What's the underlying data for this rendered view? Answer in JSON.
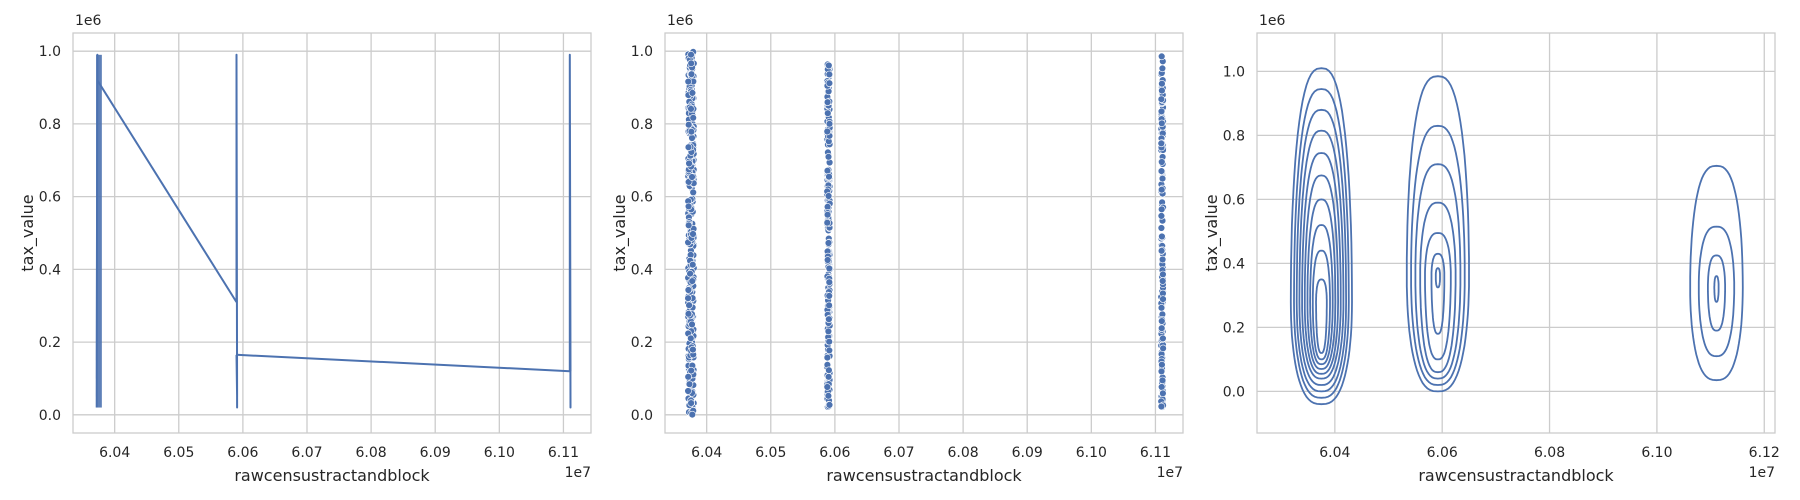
{
  "chart_data": [
    {
      "type": "line",
      "xlabel": "rawcensustractandblock",
      "ylabel": "tax_value",
      "x_offset_label": "1e7",
      "y_offset_label": "1e6",
      "xlim": [
        6.0335,
        6.1143
      ],
      "ylim": [
        -0.05,
        1.05
      ],
      "xticks": [
        6.04,
        6.05,
        6.06,
        6.07,
        6.08,
        6.09,
        6.1,
        6.11
      ],
      "yticks": [
        0.0,
        0.2,
        0.4,
        0.6,
        0.8,
        1.0
      ],
      "xtick_labels": [
        "6.04",
        "6.05",
        "6.06",
        "6.07",
        "6.08",
        "6.09",
        "6.10",
        "6.11"
      ],
      "ytick_labels": [
        "0.0",
        "0.2",
        "0.4",
        "0.6",
        "0.8",
        "1.0"
      ],
      "grid": true,
      "color": "#4c72b0",
      "series": [
        {
          "x": [
            6.0372,
            6.0373,
            6.0372,
            6.0373,
            6.0372,
            6.0373,
            6.0372,
            6.0373,
            6.0373
          ],
          "y": [
            0.02,
            0.99,
            0.05,
            0.97,
            0.1,
            0.95,
            0.15,
            0.99,
            0.92
          ]
        },
        {
          "x": [
            6.0373,
            6.059
          ],
          "y": [
            0.92,
            0.31
          ]
        },
        {
          "x": [
            6.059,
            6.059,
            6.0591,
            6.059,
            6.0591,
            6.059
          ],
          "y": [
            0.31,
            0.99,
            0.02,
            0.98,
            0.05,
            0.165
          ]
        },
        {
          "x": [
            6.059,
            6.111
          ],
          "y": [
            0.165,
            0.12
          ]
        },
        {
          "x": [
            6.111,
            6.111,
            6.1111,
            6.111,
            6.1111
          ],
          "y": [
            0.12,
            0.99,
            0.02,
            0.98,
            0.12
          ]
        }
      ]
    },
    {
      "type": "scatter",
      "xlabel": "rawcensustractandblock",
      "ylabel": "tax_value",
      "x_offset_label": "1e7",
      "y_offset_label": "1e6",
      "xlim": [
        6.0335,
        6.1143
      ],
      "ylim": [
        -0.05,
        1.05
      ],
      "xticks": [
        6.04,
        6.05,
        6.06,
        6.07,
        6.08,
        6.09,
        6.1,
        6.11
      ],
      "yticks": [
        0.0,
        0.2,
        0.4,
        0.6,
        0.8,
        1.0
      ],
      "xtick_labels": [
        "6.04",
        "6.05",
        "6.06",
        "6.07",
        "6.08",
        "6.09",
        "6.10",
        "6.11"
      ],
      "ytick_labels": [
        "0.0",
        "0.2",
        "0.4",
        "0.6",
        "0.8",
        "1.0"
      ],
      "grid": true,
      "color": "#4c72b0",
      "clusters": [
        {
          "x_min": 6.0371,
          "x_max": 6.038,
          "y_min": 0.0,
          "y_max": 1.0,
          "n": 400
        },
        {
          "x_min": 6.0588,
          "x_max": 6.0592,
          "y_min": 0.02,
          "y_max": 0.99,
          "n": 220
        },
        {
          "x_min": 6.1109,
          "x_max": 6.1112,
          "y_min": 0.02,
          "y_max": 0.99,
          "n": 160
        }
      ]
    },
    {
      "type": "contour",
      "xlabel": "rawcensustractandblock",
      "ylabel": "tax_value",
      "x_offset_label": "1e7",
      "y_offset_label": "1e6",
      "xlim": [
        6.0255,
        6.122
      ],
      "ylim": [
        -0.13,
        1.12
      ],
      "xticks": [
        6.04,
        6.06,
        6.08,
        6.1,
        6.12
      ],
      "yticks": [
        0.0,
        0.2,
        0.4,
        0.6,
        0.8,
        1.0
      ],
      "xtick_labels": [
        "6.04",
        "6.06",
        "6.08",
        "6.10",
        "6.12"
      ],
      "ytick_labels": [
        "0.0",
        "0.2",
        "0.4",
        "0.6",
        "0.8",
        "1.0"
      ],
      "grid": true,
      "color": "#4c72b0",
      "density_groups": [
        {
          "center_x": 6.0375,
          "peak_y": 0.28,
          "contours": [
            {
              "w": 0.0057,
              "top": 1.01,
              "bottom": -0.04
            },
            {
              "w": 0.0051,
              "top": 0.945,
              "bottom": -0.02
            },
            {
              "w": 0.0046,
              "top": 0.88,
              "bottom": 0.0
            },
            {
              "w": 0.0041,
              "top": 0.815,
              "bottom": 0.02
            },
            {
              "w": 0.0036,
              "top": 0.745,
              "bottom": 0.04
            },
            {
              "w": 0.0031,
              "top": 0.675,
              "bottom": 0.055
            },
            {
              "w": 0.0026,
              "top": 0.6,
              "bottom": 0.07
            },
            {
              "w": 0.0021,
              "top": 0.52,
              "bottom": 0.085
            },
            {
              "w": 0.0016,
              "top": 0.44,
              "bottom": 0.1
            },
            {
              "w": 0.001,
              "top": 0.35,
              "bottom": 0.12
            }
          ]
        },
        {
          "center_x": 6.0592,
          "peak_y": 0.36,
          "contours": [
            {
              "w": 0.0058,
              "top": 0.985,
              "bottom": 0.0
            },
            {
              "w": 0.005,
              "top": 0.83,
              "bottom": 0.02
            },
            {
              "w": 0.0042,
              "top": 0.71,
              "bottom": 0.04
            },
            {
              "w": 0.0033,
              "top": 0.59,
              "bottom": 0.06
            },
            {
              "w": 0.0024,
              "top": 0.495,
              "bottom": 0.1
            },
            {
              "w": 0.0012,
              "top": 0.43,
              "bottom": 0.18
            },
            {
              "w": 0.0004,
              "top": 0.385,
              "bottom": 0.325
            }
          ]
        },
        {
          "center_x": 6.1111,
          "peak_y": 0.325,
          "contours": [
            {
              "w": 0.0049,
              "top": 0.705,
              "bottom": 0.035
            },
            {
              "w": 0.0033,
              "top": 0.515,
              "bottom": 0.11
            },
            {
              "w": 0.0016,
              "top": 0.425,
              "bottom": 0.19
            },
            {
              "w": 0.0004,
              "top": 0.36,
              "bottom": 0.28
            }
          ]
        }
      ]
    }
  ]
}
